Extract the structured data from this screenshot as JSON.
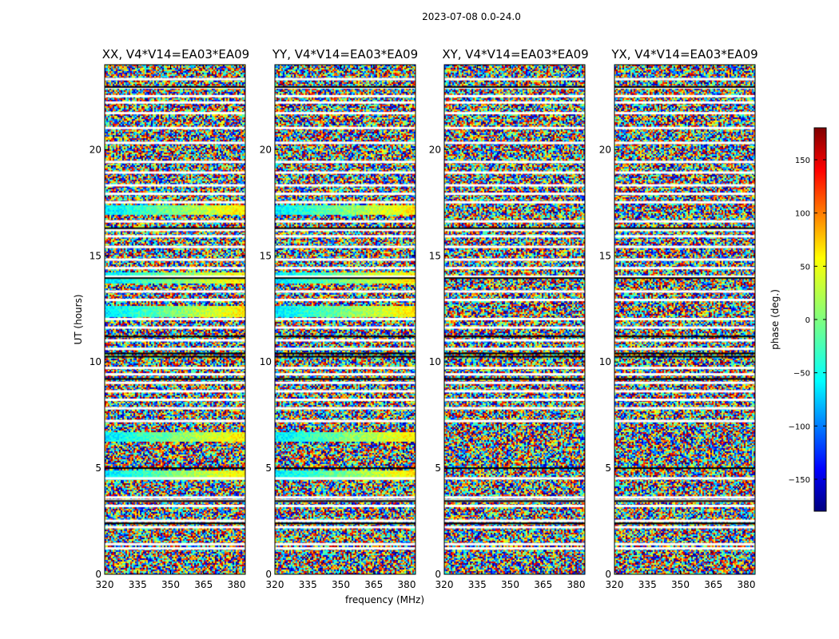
{
  "figure": {
    "suptitle": "2023-07-08 0.0-24.0",
    "xlabel": "frequency (MHz)",
    "ylabel": "UT (hours)",
    "colorbar_label": "phase (deg.)"
  },
  "chart_data": {
    "type": "heatmap",
    "panels": [
      {
        "title": "XX, V4*V14=EA03*EA09",
        "rfi_bands_hours": [
          4.7,
          6.5,
          12.4,
          14.0,
          17.2
        ]
      },
      {
        "title": "YY, V4*V14=EA03*EA09",
        "rfi_bands_hours": [
          4.7,
          6.5,
          12.4,
          14.0,
          17.2
        ]
      },
      {
        "title": "XY, V4*V14=EA03*EA09",
        "rfi_bands_hours": []
      },
      {
        "title": "YX, V4*V14=EA03*EA09",
        "rfi_bands_hours": []
      }
    ],
    "x": {
      "label": "frequency (MHz)",
      "range": [
        320,
        384
      ],
      "ticks": [
        320,
        335,
        350,
        365,
        380
      ]
    },
    "y": {
      "label": "UT (hours)",
      "range": [
        0,
        24
      ],
      "ticks": [
        0,
        5,
        10,
        15,
        20
      ]
    },
    "colorbar": {
      "label": "phase (deg.)",
      "range": [
        -180,
        180
      ],
      "ticks": [
        -150,
        -100,
        -50,
        0,
        50,
        100,
        150
      ],
      "colormap": "jet"
    },
    "flagged_gaps_hours": [
      1.2,
      1.4,
      2.2,
      2.5,
      3.2,
      3.45,
      3.6,
      4.5,
      7.2,
      7.8,
      8.2,
      8.6,
      9.0,
      9.4,
      9.7,
      10.6,
      11.0,
      11.6,
      12.0,
      12.9,
      13.3,
      14.0,
      14.4,
      14.8,
      15.4,
      15.9,
      16.2,
      16.6,
      17.5,
      17.9,
      18.3,
      18.9,
      19.4,
      20.3,
      21.0,
      21.7,
      22.2,
      22.5,
      22.9,
      23.3
    ],
    "dark_flagged_rows_hours": [
      10.25,
      10.4,
      11.2,
      9.2,
      22.95,
      16.3,
      13.95,
      5.0,
      3.45,
      2.4
    ]
  }
}
